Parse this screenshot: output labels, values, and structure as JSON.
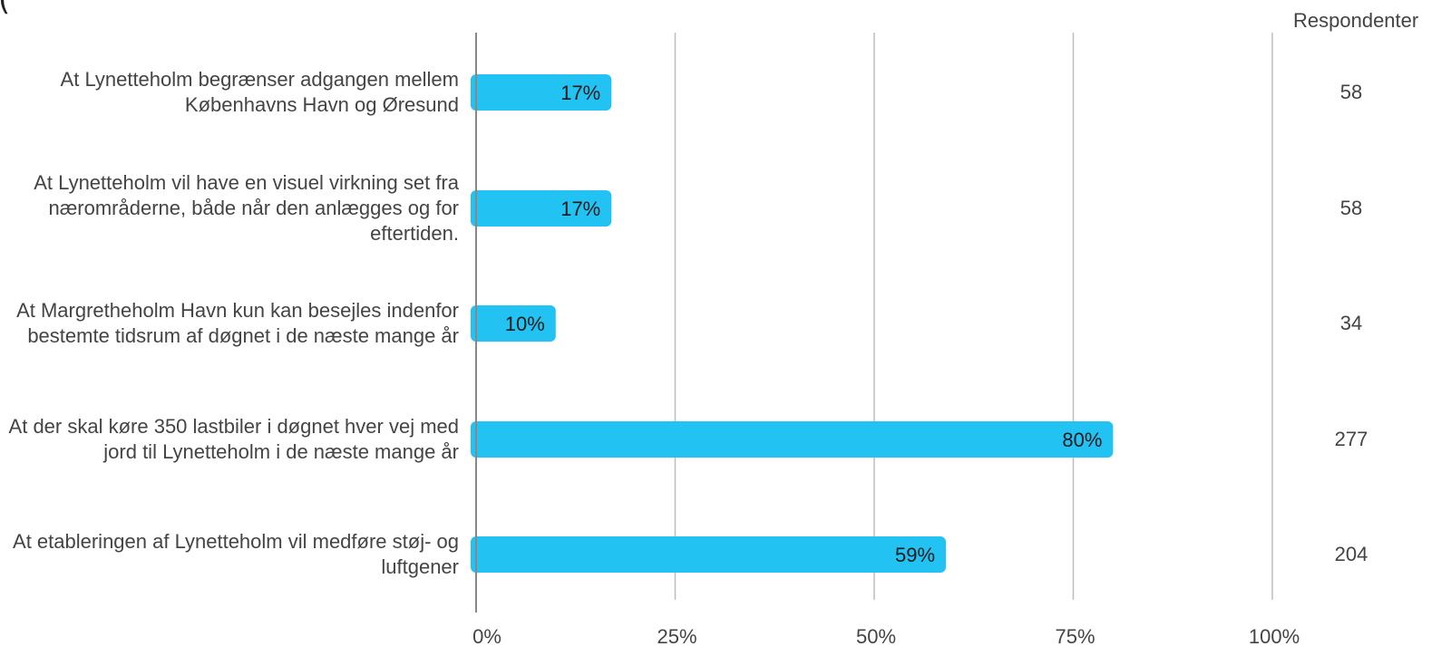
{
  "header_fragment": "(",
  "chart_data": {
    "type": "bar",
    "orientation": "horizontal",
    "categories": [
      "At Lynetteholm begrænser adgangen mellem Københavns Havn og Øresund",
      "At Lynetteholm vil have en visuel virkning set fra nærområderne, både når den anlægges og for eftertiden.",
      "At Margretheholm Havn kun kan besejles indenfor bestemte tidsrum af døgnet i de næste mange år",
      "At der skal køre 350 lastbiler i døgnet hver vej med jord til Lynetteholm i de næste mange år",
      "At etableringen af Lynetteholm vil medføre støj- og luftgener"
    ],
    "category_lines": [
      [
        "At Lynetteholm begrænser adgangen mellem",
        "Københavns Havn og Øresund"
      ],
      [
        "At Lynetteholm vil have en visuel virkning set fra",
        "nærområderne, både når den anlægges og for",
        "eftertiden."
      ],
      [
        "At Margretheholm Havn kun kan besejles indenfor",
        "bestemte tidsrum af døgnet i de næste mange år"
      ],
      [
        "At der skal køre 350 lastbiler i døgnet hver vej med",
        "jord til Lynetteholm i de næste mange år"
      ],
      [
        "At etableringen af Lynetteholm vil medføre støj- og",
        "luftgener"
      ]
    ],
    "values": [
      17,
      17,
      10,
      80,
      59
    ],
    "value_labels": [
      "17%",
      "17%",
      "10%",
      "80%",
      "59%"
    ],
    "xlim": [
      0,
      100
    ],
    "x_ticks": [
      "0%",
      "25%",
      "50%",
      "75%",
      "100%"
    ],
    "grid": true,
    "bar_color": "#22c3f3",
    "grid_color": "#bdbdbd",
    "axis_color": "#888888",
    "respondents_header": "Respondenter",
    "respondents": [
      "58",
      "58",
      "34",
      "277",
      "204"
    ]
  }
}
